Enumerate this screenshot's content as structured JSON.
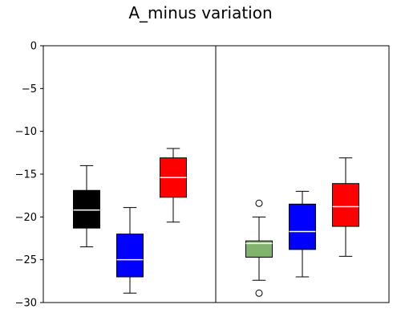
{
  "chart_data": {
    "type": "boxplot",
    "title": "A_minus variation",
    "xlabel": "",
    "ylabel": "",
    "ylim": [
      -30,
      0
    ],
    "yticks": [
      0,
      -5,
      -10,
      -15,
      -20,
      -25,
      -30
    ],
    "grid": false,
    "legend": "none",
    "panels": 2,
    "boxes": [
      {
        "panel": 0,
        "fill": "#000000",
        "median_color": "#ffffff",
        "whisker_low": -23.5,
        "q1": -21.3,
        "median": -19.2,
        "q3": -16.9,
        "whisker_high": -14.0,
        "outliers": []
      },
      {
        "panel": 0,
        "fill": "#0000ff",
        "median_color": "#ffffff",
        "whisker_low": -28.9,
        "q1": -27.0,
        "median": -25.0,
        "q3": -22.0,
        "whisker_high": -18.9,
        "outliers": []
      },
      {
        "panel": 0,
        "fill": "#ff0000",
        "median_color": "#ffffff",
        "whisker_low": -20.6,
        "q1": -17.7,
        "median": -15.4,
        "q3": -13.1,
        "whisker_high": -12.0,
        "outliers": []
      },
      {
        "panel": 1,
        "fill": "#80b36b",
        "median_color": "#ffffff",
        "whisker_low": -27.4,
        "q1": -24.7,
        "median": -23.1,
        "q3": -22.8,
        "whisker_high": -20.0,
        "outliers": [
          -18.4,
          -28.9
        ]
      },
      {
        "panel": 1,
        "fill": "#0000ff",
        "median_color": "#ffffff",
        "whisker_low": -27.0,
        "q1": -23.8,
        "median": -21.7,
        "q3": -18.5,
        "whisker_high": -17.0,
        "outliers": []
      },
      {
        "panel": 1,
        "fill": "#ff0000",
        "median_color": "#ffffff",
        "whisker_low": -24.6,
        "q1": -21.1,
        "median": -18.8,
        "q3": -16.1,
        "whisker_high": -13.1,
        "outliers": []
      }
    ]
  }
}
